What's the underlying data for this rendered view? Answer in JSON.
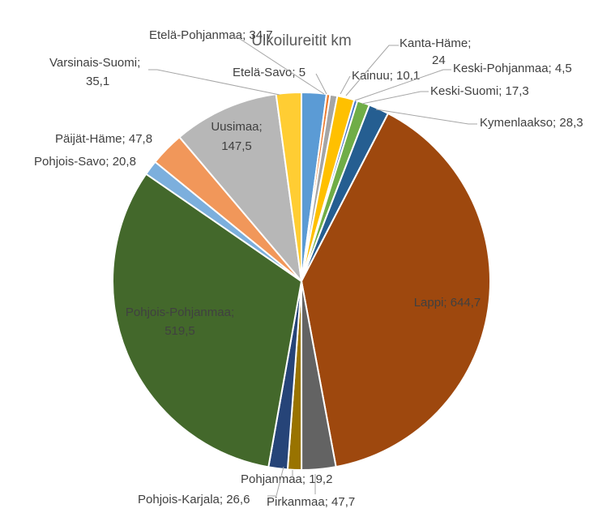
{
  "chart_data": {
    "type": "pie",
    "title": "Ulkoilureitit km",
    "series": [
      {
        "name": "Etelä-Pohjanmaa",
        "value": 34.7,
        "label": "Etelä-Pohjanmaa; 34,7",
        "color": "#5b9bd5"
      },
      {
        "name": "Etelä-Savo",
        "value": 5,
        "label": "Etelä-Savo; 5",
        "color": "#ed7d31"
      },
      {
        "name": "Kainuu",
        "value": 10.1,
        "label": "Kainuu; 10,1",
        "color": "#a5a5a5"
      },
      {
        "name": "Kanta-Häme",
        "value": 24,
        "label": "Kanta-Häme; 24",
        "color": "#ffc000"
      },
      {
        "name": "Keski-Pohjanmaa",
        "value": 4.5,
        "label": "Keski-Pohjanmaa; 4,5",
        "color": "#4472c4"
      },
      {
        "name": "Keski-Suomi",
        "value": 17.3,
        "label": "Keski-Suomi; 17,3",
        "color": "#70ad47"
      },
      {
        "name": "Kymenlaakso",
        "value": 28.3,
        "label": "Kymenlaakso; 28,3",
        "color": "#255e91"
      },
      {
        "name": "Lappi",
        "value": 644.7,
        "label": "Lappi; 644,7",
        "color": "#9e480e"
      },
      {
        "name": "Pirkanmaa",
        "value": 47.7,
        "label": "Pirkanmaa; 47,7",
        "color": "#636363"
      },
      {
        "name": "Pohjanmaa",
        "value": 19.2,
        "label": "Pohjanmaa; 19,2",
        "color": "#997300"
      },
      {
        "name": "Pohjois-Karjala",
        "value": 26.6,
        "label": "Pohjois-Karjala; 26,6",
        "color": "#264478"
      },
      {
        "name": "Pohjois-Pohjanmaa",
        "value": 519.5,
        "label": "Pohjois-Pohjanmaa; 519,5",
        "color": "#43682b"
      },
      {
        "name": "Pohjois-Savo",
        "value": 20.8,
        "label": "Pohjois-Savo; 20,8",
        "color": "#7cafdd"
      },
      {
        "name": "Päijät-Häme",
        "value": 47.8,
        "label": "Päijät-Häme; 47,8",
        "color": "#f1975a"
      },
      {
        "name": "Uusimaa",
        "value": 147.5,
        "label": "Uusimaa; 147,5",
        "color": "#b7b7b7"
      },
      {
        "name": "Varsinais-Suomi",
        "value": 35.1,
        "label": "Varsinais-Suomi; 35,1",
        "color": "#ffcd33"
      }
    ]
  }
}
